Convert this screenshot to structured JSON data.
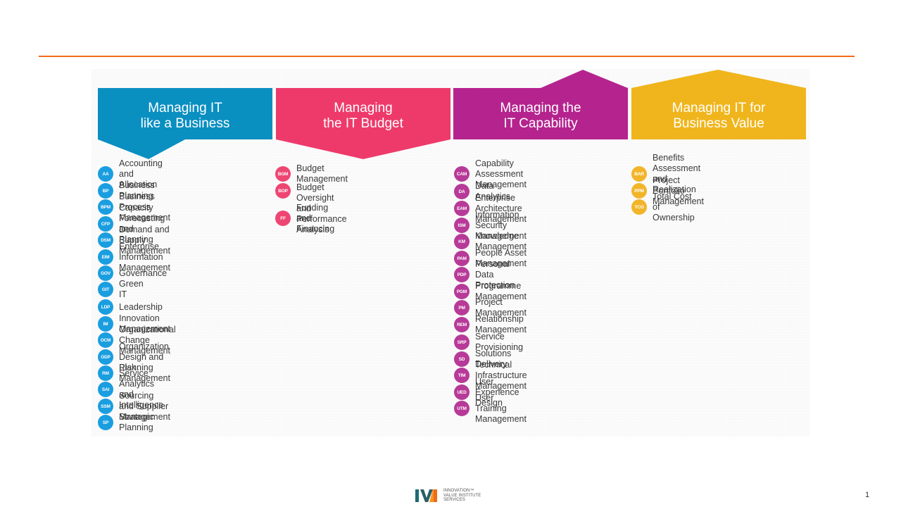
{
  "slide": {
    "page_number": "1",
    "rule_color": "#f26a1b"
  },
  "logo": {
    "mark": "IVI",
    "text": "INNOVATION™\nVALUE INSTITUTE\nSERVICES"
  },
  "columns": [
    {
      "title": "Managing IT\nlike a Business",
      "color": "#0a8fc1",
      "badge_color": "#1a9ee0",
      "shape": "arrow-down-left",
      "items": [
        {
          "code": "AA",
          "label": "Accounting and Allocation"
        },
        {
          "code": "BP",
          "label": "Business Planning"
        },
        {
          "code": "BPM",
          "label": "Business Process Management"
        },
        {
          "code": "CFP",
          "label": "Capacity Forecasting and Planning"
        },
        {
          "code": "DSM",
          "label": "Demand and Supply Management"
        },
        {
          "code": "EIM",
          "label": "Enterprise Information Management"
        },
        {
          "code": "GOV",
          "label": "Governance"
        },
        {
          "code": "GIT",
          "label": "Green IT"
        },
        {
          "code": "LDP",
          "label": "Leadership"
        },
        {
          "code": "IM",
          "label": "Innovation Management"
        },
        {
          "code": "OCM",
          "label": "Organizational Change Management"
        },
        {
          "code": "ODP",
          "label": "Organization Design and Planning"
        },
        {
          "code": "RM",
          "label": "Risk Management"
        },
        {
          "code": "SAI",
          "label": "Service Analytics and Intelligence"
        },
        {
          "code": "SSM",
          "label": "Sourcing and Supplier Management"
        },
        {
          "code": "SP",
          "label": "Strategic Planning"
        }
      ]
    },
    {
      "title": "Managing\nthe IT Budget",
      "color": "#ee3a6b",
      "badge_color": "#ee4673",
      "shape": "arrow-down-center",
      "items": [
        {
          "code": "BGM",
          "label": "Budget Management"
        },
        {
          "code": "BOP",
          "label": "Budget Oversight and Performance\nAnalysis"
        },
        {
          "code": "FF",
          "label": "Funding and Financing"
        }
      ]
    },
    {
      "title": "Managing the\nIT Capability",
      "color": "#b5238e",
      "badge_color": "#b73a98",
      "shape": "arrow-up-right",
      "items": [
        {
          "code": "CAM",
          "label": "Capability Assessment Management"
        },
        {
          "code": "DA",
          "label": "Data Analytics"
        },
        {
          "code": "EAM",
          "label": "Enterprise Architecture Management"
        },
        {
          "code": "ISM",
          "label": "Information Security Management"
        },
        {
          "code": "KM",
          "label": "Knowledge Management"
        },
        {
          "code": "PAM",
          "label": "People Asset Management"
        },
        {
          "code": "PDP",
          "label": "Personal Data Protection"
        },
        {
          "code": "PGM",
          "label": "Programme Management"
        },
        {
          "code": "PM",
          "label": "Project Management"
        },
        {
          "code": "REM",
          "label": "Relationship Management"
        },
        {
          "code": "SRP",
          "label": "Service Provisioning"
        },
        {
          "code": "SD",
          "label": "Solutions Delivery"
        },
        {
          "code": "TIM",
          "label": "Technical Infrastructure Management"
        },
        {
          "code": "UED",
          "label": "User Experience Design"
        },
        {
          "code": "UTM",
          "label": "User Training Management"
        }
      ]
    },
    {
      "title": "Managing IT for\nBusiness Value",
      "color": "#f0b51c",
      "badge_color": "#f2b52a",
      "shape": "arrow-up-center",
      "items": [
        {
          "code": "BAR",
          "label": "Benefits Assessment and Realization"
        },
        {
          "code": "PPM",
          "label": "Project Portfolio Management"
        },
        {
          "code": "TCO",
          "label": "Total Cost of Ownership"
        }
      ]
    }
  ]
}
